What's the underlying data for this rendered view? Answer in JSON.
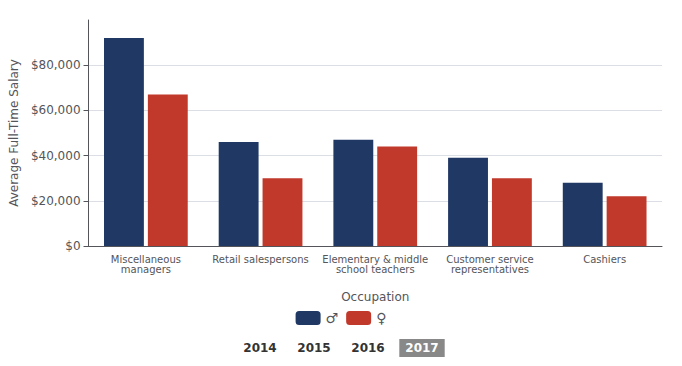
{
  "chart_data": {
    "type": "bar",
    "categories": [
      "Miscellaneous\nmanagers",
      "Retail salespersons",
      "Elementary & middle\nschool teachers",
      "Customer service\nrepresentatives",
      "Cashiers"
    ],
    "series": [
      {
        "name": "♂",
        "color": "#1f3864",
        "values": [
          92000,
          46000,
          47000,
          39000,
          28000
        ]
      },
      {
        "name": "♀",
        "color": "#c0392b",
        "values": [
          67000,
          30000,
          44000,
          30000,
          22000
        ]
      }
    ],
    "xlabel": "Occupation",
    "ylabel": "Average Full-Time Salary",
    "ylim": [
      0,
      100000
    ],
    "yticks": [
      {
        "value": 0,
        "label": "$0"
      },
      {
        "value": 20000,
        "label": "$20,000"
      },
      {
        "value": 40000,
        "label": "$40,000"
      },
      {
        "value": 60000,
        "label": "$60,000"
      },
      {
        "value": 80000,
        "label": "$80,000"
      }
    ],
    "grid": true,
    "legend": "bottom",
    "annotations": [
      {
        "text": "2014"
      },
      {
        "text": "2015"
      },
      {
        "text": "2016"
      },
      {
        "text": "2017",
        "color": "#888888"
      }
    ]
  }
}
